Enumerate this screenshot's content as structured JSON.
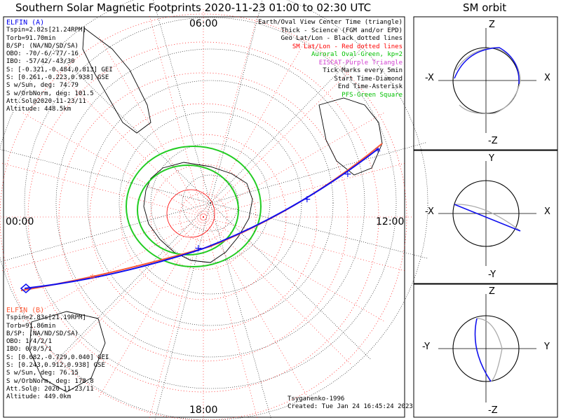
{
  "title": "Southern Solar Magnetic Footprints 2020-11-23 01:00 to 02:30 UTC",
  "sm_panel_title": "SM orbit",
  "hour_labels": {
    "top": "06:00",
    "left": "00:00",
    "right": "12:00",
    "bottom": "18:00"
  },
  "elfin_a": {
    "name": "ELFIN (A)",
    "color": "#0000ee",
    "lines": [
      "Tspin=2.82s[21.24RPM]",
      "Torb=91.70min",
      "B/SP: (NA/ND/SD/SA)",
      "OBO: -70/-6/-77/-16",
      "IBO: -57/42/-43/30",
      "S: [-0.321,-0.484,0.813] GEI",
      "S: [0.261,-0.223,0.938] GSE",
      "S w/Sun, deg: 74.79",
      "S w/OrbNorm, deg: 101.5",
      "Att.Sol@2020-11-23/11",
      "Altitude: 448.5km"
    ]
  },
  "elfin_b": {
    "name": "ELFIN (B)",
    "color": "#ff5a36",
    "lines": [
      "Tspin=2.83s[21.19RPM]",
      "Torb=91.86min",
      "B/SP: (NA/ND/SD/SA)",
      "OBO: 1/4/2/1",
      "IBO: 0/8/5/1",
      "S: [0.682,-0.729,0.040] GEI",
      "S: [0.243,0.912,0.938] GSE",
      "S w/Sun, deg: 76.15",
      "S w/OrbNorm, deg: 178.8",
      "Att.Sol@: 2020-11-23/11",
      "Altitude: 449.0km"
    ]
  },
  "legend": [
    {
      "text": "Earth/Oval View Center Time (triangle)",
      "color": "#000000"
    },
    {
      "text": "Thick - Science (FGM and/or EPD)",
      "color": "#000000"
    },
    {
      "text": "Geo Lat/Lon - Black dotted lines",
      "color": "#000000"
    },
    {
      "text": "SM Lat/Lon - Red dotted lines",
      "color": "#ff0000"
    },
    {
      "text": "Auroral Oval-Green, kp=2",
      "color": "#00c000"
    },
    {
      "text": "EISCAT-Purple Triangle",
      "color": "#d040d0"
    },
    {
      "text": "Tick Marks every 5min",
      "color": "#000000"
    },
    {
      "text": "Start Time-Diamond",
      "color": "#000000"
    },
    {
      "text": "End Time-Asterisk",
      "color": "#000000"
    },
    {
      "text": "PFS-Green Square",
      "color": "#00c000"
    }
  ],
  "credits": {
    "author": "Tsyganenko-1996",
    "created": "Created: Tue Jan 24 16:45:24 2023"
  },
  "sm_panels": [
    {
      "top_label": "Z",
      "bottom_label": "-Z",
      "left_label": "-X",
      "right_label": "X"
    },
    {
      "top_label": "Y",
      "bottom_label": "-Y",
      "left_label": "-X",
      "right_label": "X"
    },
    {
      "top_label": "Z",
      "bottom_label": "-Z",
      "left_label": "-Y",
      "right_label": "Y"
    }
  ],
  "chart_data": {
    "type": "polar-map",
    "hemisphere": "south",
    "center_label": "SM south pole",
    "local_time_labels": [
      "00:00",
      "06:00",
      "12:00",
      "18:00"
    ],
    "auroral_oval_kp": 2,
    "tick_interval_min": 5,
    "series": [
      {
        "name": "ELFIN (A)",
        "color": "#0000ee"
      },
      {
        "name": "ELFIN (B)",
        "color": "#ff5a36"
      }
    ]
  }
}
